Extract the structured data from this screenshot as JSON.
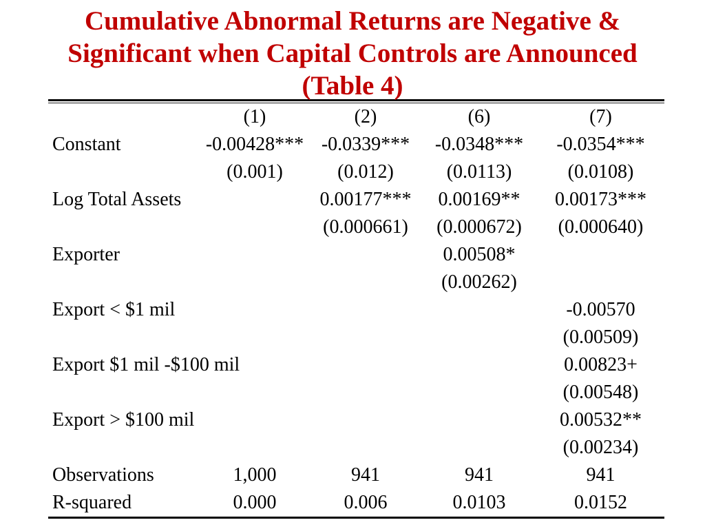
{
  "title": {
    "line1": "Cumulative Abnormal Returns are Negative &",
    "line2": "Significant when Capital Controls are Announced",
    "line3": "(Table 4)",
    "color": "#c00000"
  },
  "table": {
    "columns": [
      "(1)",
      "(2)",
      "(6)",
      "(7)"
    ],
    "rows": [
      {
        "label": "Constant",
        "values": [
          "-0.00428***",
          "-0.0339***",
          "-0.0348***",
          "-0.0354***"
        ]
      },
      {
        "label": "",
        "values": [
          "(0.001)",
          "(0.012)",
          "(0.0113)",
          "(0.0108)"
        ]
      },
      {
        "label": "Log Total Assets",
        "values": [
          "",
          "0.00177***",
          "0.00169**",
          "0.00173***"
        ]
      },
      {
        "label": "",
        "values": [
          "",
          "(0.000661)",
          "(0.000672)",
          "(0.000640)"
        ]
      },
      {
        "label": "Exporter",
        "values": [
          "",
          "",
          "0.00508*",
          ""
        ]
      },
      {
        "label": "",
        "values": [
          "",
          "",
          "(0.00262)",
          ""
        ]
      },
      {
        "label": "Export < $1 mil",
        "values": [
          "",
          "",
          "",
          "-0.00570"
        ]
      },
      {
        "label": "",
        "values": [
          "",
          "",
          "",
          "(0.00509)"
        ]
      },
      {
        "label": "Export $1 mil -$100 mil",
        "values": [
          "",
          "",
          "",
          "0.00823+"
        ]
      },
      {
        "label": "",
        "values": [
          "",
          "",
          "",
          "(0.00548)"
        ]
      },
      {
        "label": "Export > $100 mil",
        "values": [
          "",
          "",
          "",
          "0.00532**"
        ]
      },
      {
        "label": "",
        "values": [
          "",
          "",
          "",
          "(0.00234)"
        ]
      },
      {
        "label": "Observations",
        "values": [
          "1,000",
          "941",
          "941",
          "941"
        ]
      },
      {
        "label": "R-squared",
        "values": [
          "0.000",
          "0.006",
          "0.0103",
          "0.0152"
        ]
      }
    ]
  }
}
